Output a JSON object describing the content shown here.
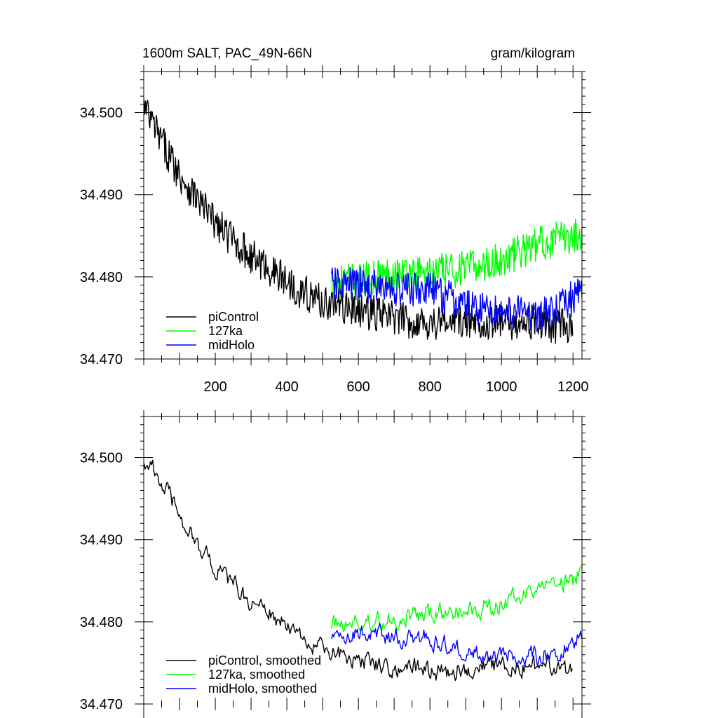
{
  "chart_data": [
    {
      "type": "line",
      "title": "1600m SALT, PAC_49N-66N",
      "units": "gram/kilogram",
      "xlabel": "",
      "ylabel": "",
      "xlim": [
        0,
        1225
      ],
      "ylim": [
        34.47,
        34.505
      ],
      "x_ticks": [
        200,
        400,
        600,
        800,
        1000,
        1200
      ],
      "x_tick_labels": [
        "200",
        "400",
        "600",
        "800",
        "1000",
        "1200"
      ],
      "y_ticks": [
        34.47,
        34.48,
        34.49,
        34.5
      ],
      "y_tick_labels": [
        "34.470",
        "34.480",
        "34.490",
        "34.500"
      ],
      "legend_position": "bottom-left",
      "series": [
        {
          "name": "piControl",
          "color": "#000000",
          "x_start": 1,
          "x_end": 1200,
          "anchors": [
            [
              1,
              34.5005
            ],
            [
              50,
              34.4965
            ],
            [
              100,
              34.4925
            ],
            [
              150,
              34.4895
            ],
            [
              200,
              34.4865
            ],
            [
              250,
              34.4845
            ],
            [
              300,
              34.4825
            ],
            [
              350,
              34.481
            ],
            [
              400,
              34.4795
            ],
            [
              450,
              34.478
            ],
            [
              500,
              34.477
            ],
            [
              550,
              34.4765
            ],
            [
              600,
              34.476
            ],
            [
              650,
              34.4755
            ],
            [
              700,
              34.475
            ],
            [
              750,
              34.4745
            ],
            [
              800,
              34.4745
            ],
            [
              850,
              34.4745
            ],
            [
              900,
              34.4745
            ],
            [
              950,
              34.4745
            ],
            [
              1000,
              34.4745
            ],
            [
              1050,
              34.4745
            ],
            [
              1100,
              34.4745
            ],
            [
              1150,
              34.474
            ],
            [
              1200,
              34.474
            ]
          ],
          "noise_amplitude": 0.0022
        },
        {
          "name": "127ka",
          "color": "#00ff00",
          "x_start": 525,
          "x_end": 1225,
          "anchors": [
            [
              525,
              34.4795
            ],
            [
              600,
              34.4795
            ],
            [
              700,
              34.4805
            ],
            [
              800,
              34.4805
            ],
            [
              900,
              34.481
            ],
            [
              1000,
              34.482
            ],
            [
              1100,
              34.484
            ],
            [
              1200,
              34.485
            ],
            [
              1225,
              34.4855
            ]
          ],
          "noise_amplitude": 0.0022
        },
        {
          "name": "midHolo",
          "color": "#0000ff",
          "x_start": 525,
          "x_end": 1225,
          "anchors": [
            [
              525,
              34.479
            ],
            [
              600,
              34.479
            ],
            [
              700,
              34.4785
            ],
            [
              800,
              34.4785
            ],
            [
              900,
              34.4765
            ],
            [
              1000,
              34.4758
            ],
            [
              1100,
              34.4755
            ],
            [
              1150,
              34.4755
            ],
            [
              1200,
              34.4775
            ],
            [
              1225,
              34.479
            ]
          ],
          "noise_amplitude": 0.0022
        }
      ]
    },
    {
      "type": "line",
      "title": "",
      "units": "",
      "xlabel": "",
      "ylabel": "",
      "xlim": [
        0,
        1225
      ],
      "ylim": [
        34.47,
        34.505
      ],
      "x_ticks": [
        200,
        400,
        600,
        800,
        1000,
        1200
      ],
      "x_tick_labels": [],
      "y_ticks": [
        34.47,
        34.48,
        34.49,
        34.5
      ],
      "y_tick_labels": [
        "34.470",
        "34.480",
        "34.490",
        "34.500"
      ],
      "legend_position": "bottom-left",
      "series": [
        {
          "name": "piControl, smoothed",
          "color": "#000000",
          "x_start": 1,
          "x_end": 1200,
          "anchors": [
            [
              1,
              34.5
            ],
            [
              50,
              34.497
            ],
            [
              100,
              34.493
            ],
            [
              150,
              34.4895
            ],
            [
              200,
              34.4865
            ],
            [
              250,
              34.4845
            ],
            [
              300,
              34.4825
            ],
            [
              350,
              34.481
            ],
            [
              400,
              34.4795
            ],
            [
              450,
              34.4775
            ],
            [
              500,
              34.4765
            ],
            [
              550,
              34.476
            ],
            [
              600,
              34.4755
            ],
            [
              650,
              34.475
            ],
            [
              700,
              34.4745
            ],
            [
              750,
              34.4745
            ],
            [
              800,
              34.474
            ],
            [
              850,
              34.474
            ],
            [
              900,
              34.4745
            ],
            [
              950,
              34.4745
            ],
            [
              1000,
              34.4745
            ],
            [
              1050,
              34.4745
            ],
            [
              1100,
              34.4745
            ],
            [
              1150,
              34.474
            ],
            [
              1200,
              34.474
            ]
          ],
          "noise_amplitude": 0.0012
        },
        {
          "name": "127ka, smoothed",
          "color": "#00ff00",
          "x_start": 525,
          "x_end": 1225,
          "anchors": [
            [
              525,
              34.4798
            ],
            [
              600,
              34.4798
            ],
            [
              700,
              34.4805
            ],
            [
              800,
              34.4808
            ],
            [
              900,
              34.4812
            ],
            [
              1000,
              34.4822
            ],
            [
              1100,
              34.484
            ],
            [
              1200,
              34.485
            ],
            [
              1225,
              34.486
            ]
          ],
          "noise_amplitude": 0.0012
        },
        {
          "name": "midHolo, smoothed",
          "color": "#0000ff",
          "x_start": 525,
          "x_end": 1225,
          "anchors": [
            [
              525,
              34.4785
            ],
            [
              600,
              34.4785
            ],
            [
              700,
              34.4783
            ],
            [
              800,
              34.478
            ],
            [
              900,
              34.4765
            ],
            [
              1000,
              34.4758
            ],
            [
              1100,
              34.4757
            ],
            [
              1150,
              34.4762
            ],
            [
              1200,
              34.4778
            ],
            [
              1225,
              34.4785
            ]
          ],
          "noise_amplitude": 0.0012
        }
      ]
    }
  ]
}
